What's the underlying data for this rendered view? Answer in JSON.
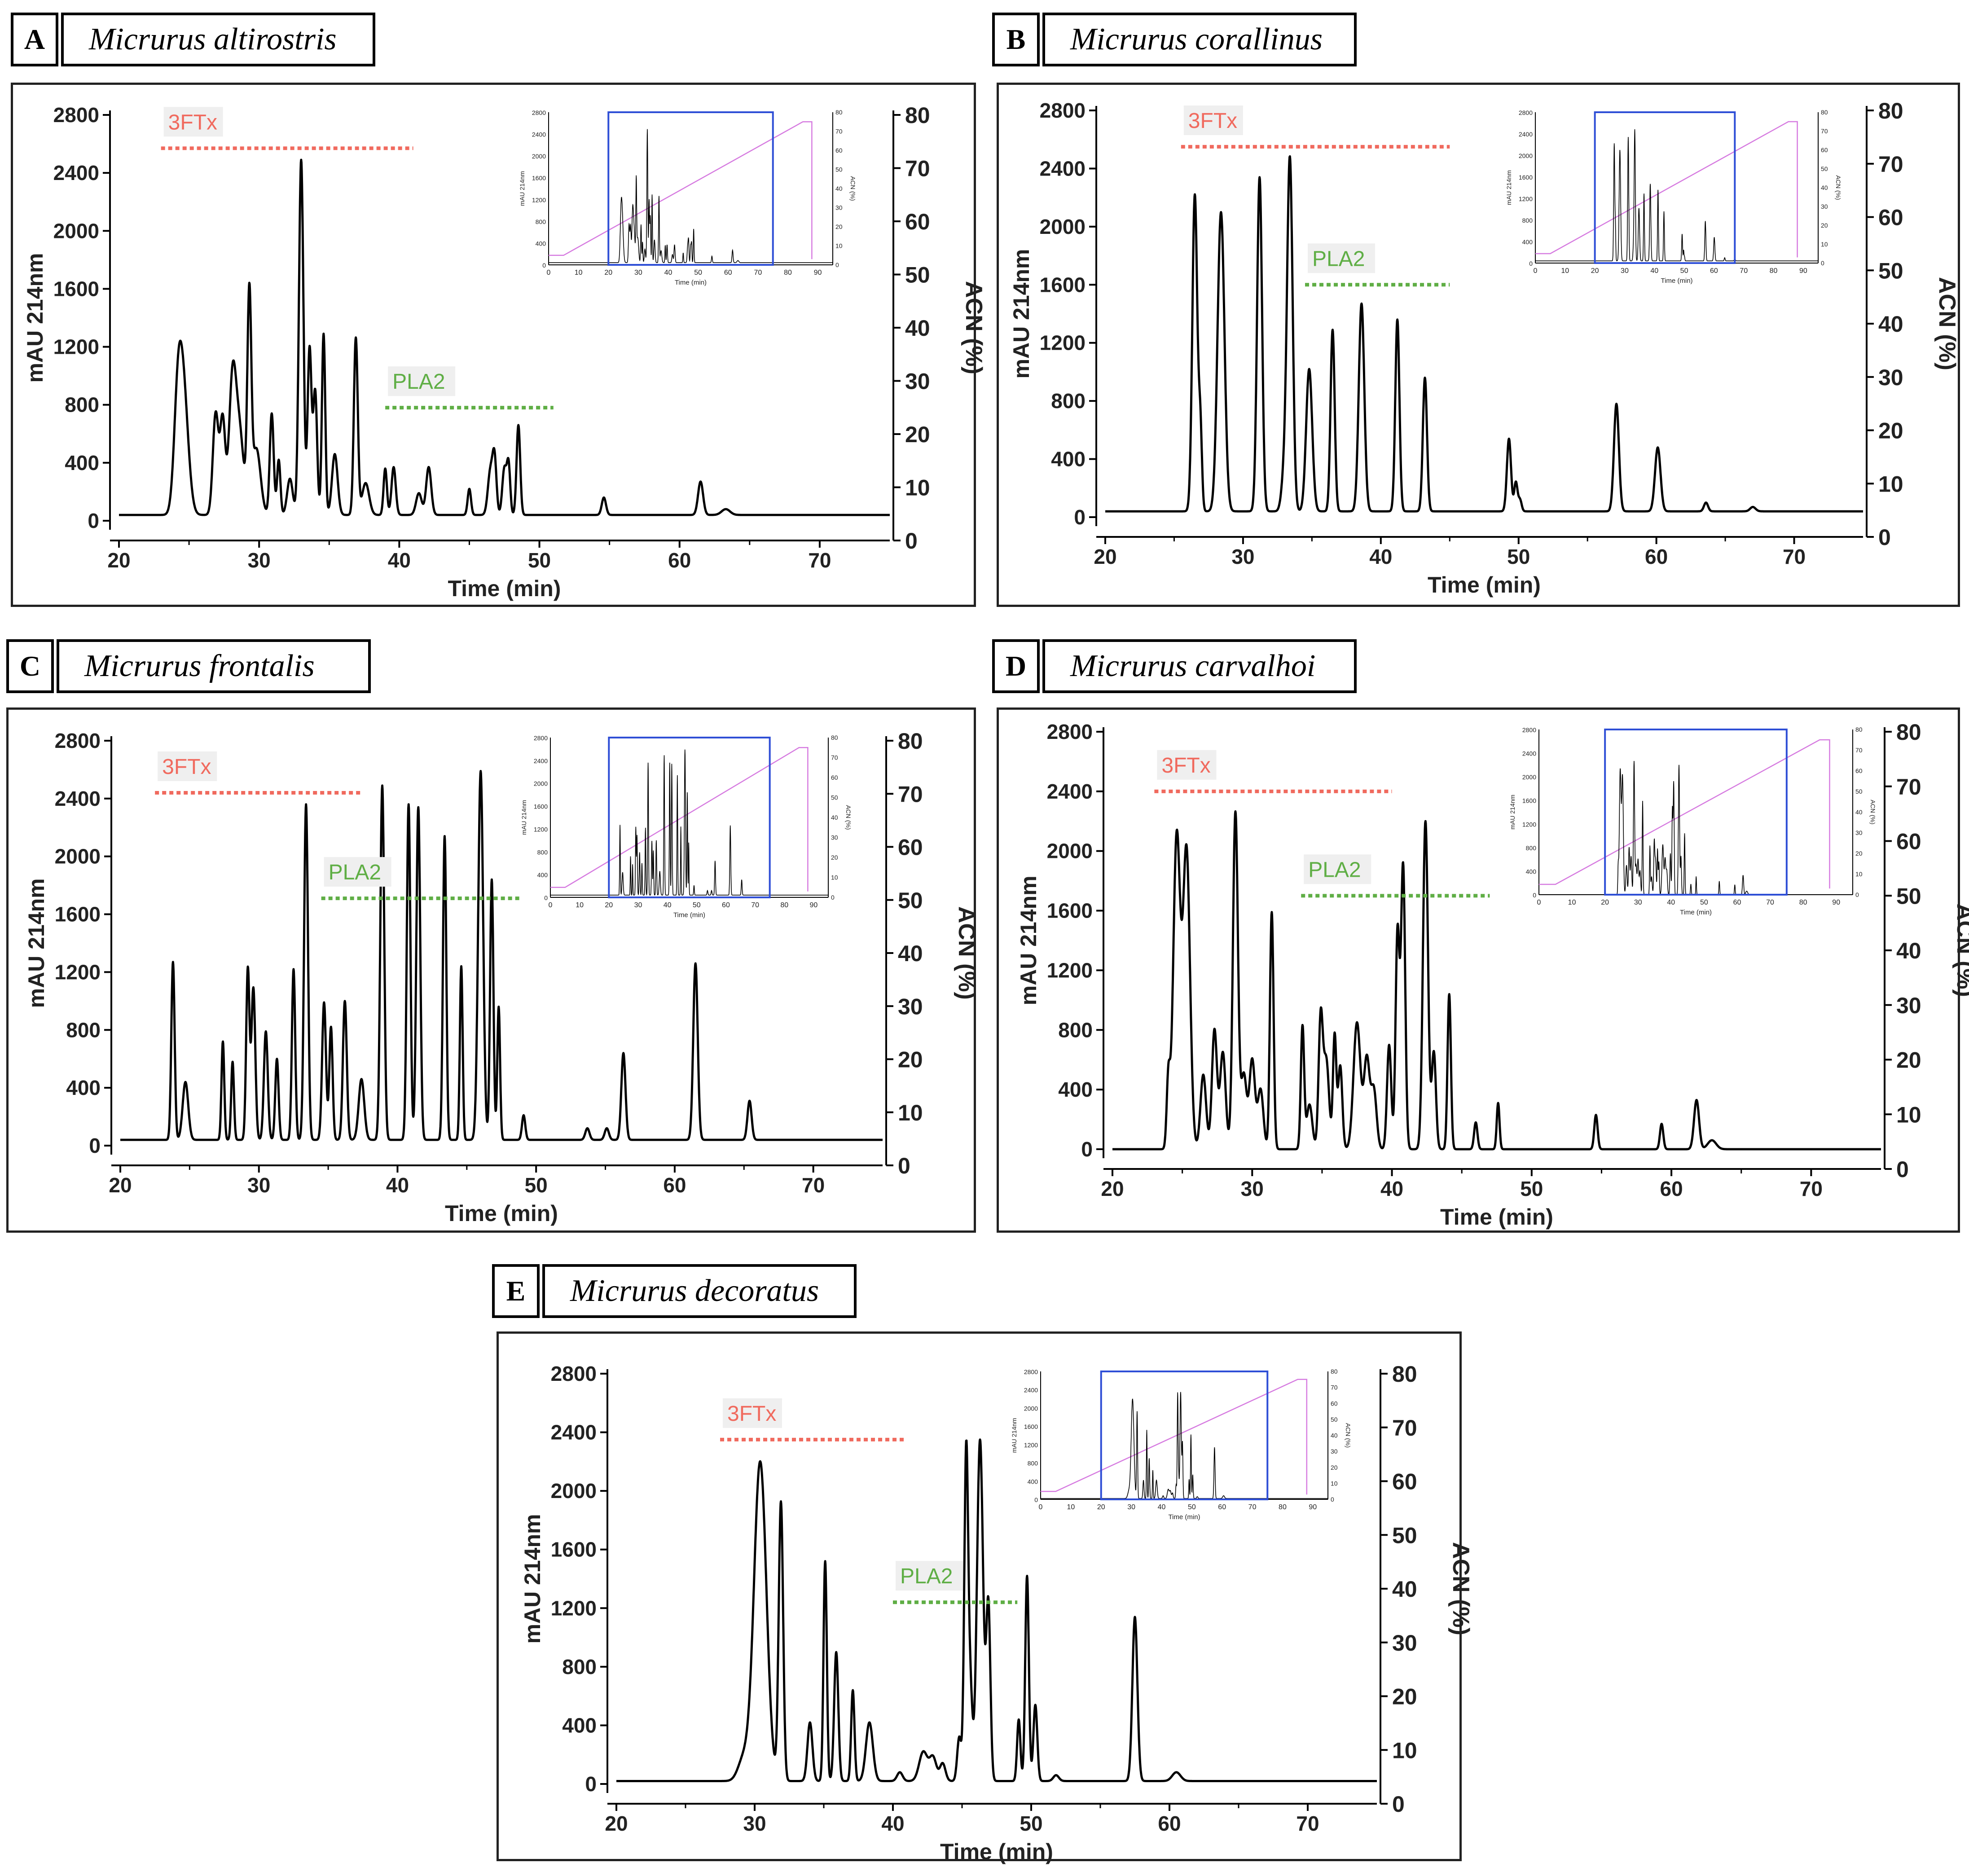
{
  "chart_data": [
    {
      "type": "line",
      "panel_letter": "A",
      "title": "Micrurus altirostris",
      "xlabel": "Time (min)",
      "ylabel": "mAU 214nm",
      "y2label": "ACN (%)",
      "xlim": [
        20,
        75
      ],
      "ylim": [
        0,
        2800
      ],
      "y2lim": [
        0,
        80
      ],
      "xticks": [
        "20",
        "30",
        "40",
        "50",
        "60",
        "70"
      ],
      "yticks": [
        "0",
        "400",
        "800",
        "1200",
        "1600",
        "2000",
        "2400",
        "2800"
      ],
      "y2ticks": [
        "0",
        "10",
        "20",
        "30",
        "40",
        "50",
        "60",
        "70",
        "80"
      ],
      "baseline": 40,
      "peaks": [
        [
          24.2,
          650,
          0.28
        ],
        [
          24.6,
          820,
          0.35
        ],
        [
          26.9,
          700,
          0.2
        ],
        [
          27.4,
          650,
          0.18
        ],
        [
          28.1,
          900,
          0.25
        ],
        [
          28.6,
          560,
          0.3
        ],
        [
          29.3,
          1450,
          0.14
        ],
        [
          29.8,
          460,
          0.3
        ],
        [
          30.9,
          700,
          0.14
        ],
        [
          31.4,
          380,
          0.12
        ],
        [
          32.2,
          250,
          0.2
        ],
        [
          33.0,
          2450,
          0.16
        ],
        [
          33.6,
          1150,
          0.14
        ],
        [
          34.0,
          850,
          0.14
        ],
        [
          34.6,
          1250,
          0.12
        ],
        [
          35.4,
          420,
          0.2
        ],
        [
          36.9,
          1220,
          0.14
        ],
        [
          37.6,
          220,
          0.25
        ],
        [
          39.0,
          320,
          0.12
        ],
        [
          39.6,
          330,
          0.15
        ],
        [
          41.4,
          150,
          0.2
        ],
        [
          42.1,
          330,
          0.18
        ],
        [
          45.0,
          180,
          0.12
        ],
        [
          46.5,
          300,
          0.18
        ],
        [
          46.8,
          370,
          0.14
        ],
        [
          47.5,
          320,
          0.15
        ],
        [
          47.8,
          340,
          0.12
        ],
        [
          48.5,
          620,
          0.13
        ],
        [
          54.6,
          120,
          0.15
        ],
        [
          61.5,
          230,
          0.18
        ],
        [
          63.3,
          40,
          0.3
        ]
      ],
      "bands": [
        {
          "label": "3FTx",
          "kind": "3ftx",
          "x_start": 23.0,
          "x_end": 41.0,
          "y": 2570
        },
        {
          "label": "PLA2",
          "kind": "pla2",
          "x_start": 39.0,
          "x_end": 51.0,
          "y": 780
        }
      ],
      "inset": {
        "xticks": [
          "0",
          "10",
          "20",
          "30",
          "40",
          "50",
          "60",
          "70",
          "80",
          "90"
        ],
        "xlabel": "Time (min)",
        "ylabel": "mAU 214nm",
        "y2label": "ACN (%)",
        "box_range": [
          20,
          75
        ],
        "gradient": [
          [
            0,
            5
          ],
          [
            5,
            5
          ],
          [
            85,
            75
          ],
          [
            88,
            75
          ],
          [
            88,
            3
          ]
        ]
      }
    },
    {
      "type": "line",
      "panel_letter": "B",
      "title": "Micrurus corallinus",
      "xlabel": "Time (min)",
      "ylabel": "mAU 214nm",
      "y2label": "ACN (%)",
      "xlim": [
        20,
        75
      ],
      "ylim": [
        0,
        2800
      ],
      "y2lim": [
        0,
        80
      ],
      "xticks": [
        "20",
        "30",
        "40",
        "50",
        "60",
        "70"
      ],
      "yticks": [
        "0",
        "400",
        "800",
        "1200",
        "1600",
        "2000",
        "2400",
        "2800"
      ],
      "y2ticks": [
        "0",
        "10",
        "20",
        "30",
        "40",
        "50",
        "60",
        "70",
        "80"
      ],
      "baseline": 40,
      "peaks": [
        [
          26.5,
          2180,
          0.18
        ],
        [
          26.9,
          550,
          0.12
        ],
        [
          28.4,
          2060,
          0.25
        ],
        [
          31.2,
          2300,
          0.18
        ],
        [
          33.0,
          250,
          0.2
        ],
        [
          33.4,
          2410,
          0.2
        ],
        [
          34.8,
          980,
          0.22
        ],
        [
          36.5,
          1250,
          0.15
        ],
        [
          38.6,
          1430,
          0.2
        ],
        [
          41.2,
          1320,
          0.15
        ],
        [
          43.2,
          920,
          0.15
        ],
        [
          49.3,
          500,
          0.15
        ],
        [
          49.8,
          200,
          0.12
        ],
        [
          50.1,
          80,
          0.12
        ],
        [
          57.1,
          740,
          0.18
        ],
        [
          60.1,
          440,
          0.2
        ],
        [
          63.6,
          60,
          0.15
        ],
        [
          67.0,
          30,
          0.2
        ]
      ],
      "bands": [
        {
          "label": "3FTx",
          "kind": "3ftx",
          "x_start": 25.5,
          "x_end": 45.0,
          "y": 2550
        },
        {
          "label": "PLA2",
          "kind": "pla2",
          "x_start": 34.5,
          "x_end": 45.0,
          "y": 1600
        }
      ],
      "inset": {
        "xticks": [
          "0",
          "10",
          "20",
          "30",
          "40",
          "50",
          "60",
          "70",
          "80",
          "90"
        ],
        "xlabel": "Time (min)",
        "ylabel": "mAU 214nm",
        "y2label": "ACN (%)",
        "box_range": [
          20,
          67
        ],
        "gradient": [
          [
            0,
            5
          ],
          [
            5,
            5
          ],
          [
            85,
            75
          ],
          [
            88,
            75
          ],
          [
            88,
            3
          ]
        ]
      }
    },
    {
      "type": "line",
      "panel_letter": "C",
      "title": "Micrurus frontalis",
      "xlabel": "Time (min)",
      "ylabel": "mAU 214nm",
      "y2label": "ACN (%)",
      "xlim": [
        20,
        75
      ],
      "ylim": [
        0,
        2800
      ],
      "y2lim": [
        0,
        80
      ],
      "xticks": [
        "20",
        "30",
        "40",
        "50",
        "60",
        "70"
      ],
      "yticks": [
        "0",
        "400",
        "800",
        "1200",
        "1600",
        "2000",
        "2400",
        "2800"
      ],
      "y2ticks": [
        "0",
        "10",
        "20",
        "30",
        "40",
        "50",
        "60",
        "70",
        "80"
      ],
      "baseline": 40,
      "peaks": [
        [
          23.8,
          1230,
          0.12
        ],
        [
          24.7,
          400,
          0.2
        ],
        [
          27.4,
          680,
          0.1
        ],
        [
          28.1,
          540,
          0.1
        ],
        [
          29.2,
          1180,
          0.12
        ],
        [
          29.6,
          1050,
          0.14
        ],
        [
          30.5,
          750,
          0.14
        ],
        [
          31.3,
          560,
          0.12
        ],
        [
          32.5,
          1180,
          0.12
        ],
        [
          33.4,
          2320,
          0.14
        ],
        [
          34.7,
          950,
          0.14
        ],
        [
          35.2,
          780,
          0.12
        ],
        [
          36.2,
          960,
          0.14
        ],
        [
          37.4,
          420,
          0.2
        ],
        [
          38.9,
          2450,
          0.14
        ],
        [
          40.8,
          2320,
          0.13
        ],
        [
          41.5,
          2300,
          0.14
        ],
        [
          43.4,
          2100,
          0.12
        ],
        [
          44.6,
          1200,
          0.1
        ],
        [
          46.0,
          2550,
          0.18
        ],
        [
          46.8,
          1800,
          0.12
        ],
        [
          47.3,
          920,
          0.1
        ],
        [
          49.1,
          170,
          0.12
        ],
        [
          53.7,
          80,
          0.15
        ],
        [
          55.1,
          80,
          0.15
        ],
        [
          56.3,
          600,
          0.15
        ],
        [
          61.5,
          1220,
          0.16
        ],
        [
          65.4,
          270,
          0.15
        ]
      ],
      "bands": [
        {
          "label": "3FTx",
          "kind": "3ftx",
          "x_start": 22.5,
          "x_end": 37.5,
          "y": 2440
        },
        {
          "label": "PLA2",
          "kind": "pla2",
          "x_start": 34.5,
          "x_end": 49.0,
          "y": 1710
        }
      ],
      "inset": {
        "xticks": [
          "0",
          "10",
          "20",
          "30",
          "40",
          "50",
          "60",
          "70",
          "80",
          "90"
        ],
        "xlabel": "Time (min)",
        "ylabel": "mAU 214nm",
        "y2label": "ACN (%)",
        "box_range": [
          20,
          75
        ],
        "gradient": [
          [
            0,
            5
          ],
          [
            5,
            5
          ],
          [
            85,
            75
          ],
          [
            88,
            75
          ],
          [
            88,
            3
          ]
        ]
      }
    },
    {
      "type": "line",
      "panel_letter": "D",
      "title": "Micrurus carvalhoi",
      "xlabel": "Time (min)",
      "ylabel": "mAU 214nm",
      "y2label": "ACN (%)",
      "xlim": [
        20,
        75
      ],
      "ylim": [
        0,
        2800
      ],
      "y2lim": [
        0,
        80
      ],
      "xticks": [
        "20",
        "30",
        "40",
        "50",
        "60",
        "70"
      ],
      "yticks": [
        "0",
        "400",
        "800",
        "1200",
        "1600",
        "2000",
        "2400",
        "2800"
      ],
      "y2ticks": [
        "0",
        "10",
        "20",
        "30",
        "40",
        "50",
        "60",
        "70",
        "80"
      ],
      "baseline": 0,
      "peaks": [
        [
          24.0,
          450,
          0.12
        ],
        [
          24.6,
          2100,
          0.25
        ],
        [
          25.3,
          2000,
          0.25
        ],
        [
          26.5,
          500,
          0.2
        ],
        [
          27.3,
          800,
          0.18
        ],
        [
          27.9,
          650,
          0.2
        ],
        [
          28.8,
          2260,
          0.18
        ],
        [
          29.4,
          500,
          0.2
        ],
        [
          30.0,
          600,
          0.2
        ],
        [
          30.6,
          400,
          0.2
        ],
        [
          31.4,
          1590,
          0.13
        ],
        [
          33.6,
          820,
          0.12
        ],
        [
          34.1,
          300,
          0.2
        ],
        [
          34.9,
          860,
          0.15
        ],
        [
          35.3,
          600,
          0.2
        ],
        [
          35.9,
          760,
          0.12
        ],
        [
          36.3,
          560,
          0.15
        ],
        [
          37.5,
          850,
          0.25
        ],
        [
          38.2,
          600,
          0.2
        ],
        [
          38.7,
          400,
          0.2
        ],
        [
          39.8,
          700,
          0.15
        ],
        [
          40.4,
          1450,
          0.14
        ],
        [
          40.8,
          1900,
          0.15
        ],
        [
          42.4,
          2200,
          0.18
        ],
        [
          43.0,
          650,
          0.15
        ],
        [
          44.1,
          1040,
          0.12
        ],
        [
          46.0,
          180,
          0.12
        ],
        [
          47.6,
          310,
          0.1
        ],
        [
          54.6,
          230,
          0.12
        ],
        [
          59.3,
          170,
          0.12
        ],
        [
          61.8,
          330,
          0.18
        ],
        [
          62.9,
          60,
          0.3
        ]
      ],
      "bands": [
        {
          "label": "3FTx",
          "kind": "3ftx",
          "x_start": 23.0,
          "x_end": 40.0,
          "y": 2400
        },
        {
          "label": "PLA2",
          "kind": "pla2",
          "x_start": 33.5,
          "x_end": 47.0,
          "y": 1700
        }
      ],
      "inset": {
        "xticks": [
          "0",
          "10",
          "20",
          "30",
          "40",
          "50",
          "60",
          "70",
          "80",
          "90"
        ],
        "xlabel": "Time (min)",
        "ylabel": "mAU 214nm",
        "y2label": "ACN (%)",
        "box_range": [
          20,
          75
        ],
        "gradient": [
          [
            0,
            5
          ],
          [
            5,
            5
          ],
          [
            85,
            75
          ],
          [
            88,
            75
          ],
          [
            88,
            3
          ]
        ]
      }
    },
    {
      "type": "line",
      "panel_letter": "E",
      "title": "Micrurus decoratus",
      "xlabel": "Time (min)",
      "ylabel": "mAU 214nm",
      "y2label": "ACN (%)",
      "xlim": [
        20,
        75
      ],
      "ylim": [
        0,
        2800
      ],
      "y2lim": [
        0,
        80
      ],
      "xticks": [
        "20",
        "30",
        "40",
        "50",
        "60",
        "70"
      ],
      "yticks": [
        "0",
        "400",
        "800",
        "1200",
        "1600",
        "2000",
        "2400",
        "2800"
      ],
      "y2ticks": [
        "0",
        "10",
        "20",
        "30",
        "40",
        "50",
        "60",
        "70",
        "80"
      ],
      "baseline": 20,
      "peaks": [
        [
          29.2,
          150,
          0.4
        ],
        [
          30.4,
          2180,
          0.45
        ],
        [
          31.9,
          1900,
          0.16
        ],
        [
          34.0,
          400,
          0.18
        ],
        [
          35.1,
          1500,
          0.12
        ],
        [
          35.9,
          880,
          0.15
        ],
        [
          37.1,
          620,
          0.12
        ],
        [
          38.3,
          400,
          0.25
        ],
        [
          40.5,
          60,
          0.2
        ],
        [
          42.2,
          200,
          0.3
        ],
        [
          42.9,
          160,
          0.25
        ],
        [
          43.6,
          120,
          0.2
        ],
        [
          44.8,
          300,
          0.15
        ],
        [
          45.3,
          2240,
          0.14
        ],
        [
          45.6,
          600,
          0.15
        ],
        [
          46.3,
          2330,
          0.22
        ],
        [
          46.9,
          1200,
          0.15
        ],
        [
          49.1,
          420,
          0.12
        ],
        [
          49.7,
          1400,
          0.13
        ],
        [
          50.3,
          520,
          0.14
        ],
        [
          51.8,
          40,
          0.2
        ],
        [
          57.5,
          1120,
          0.18
        ],
        [
          60.5,
          60,
          0.3
        ]
      ],
      "bands": [
        {
          "label": "3FTx",
          "kind": "3ftx",
          "x_start": 27.5,
          "x_end": 41.0,
          "y": 2350
        },
        {
          "label": "PLA2",
          "kind": "pla2",
          "x_start": 40.0,
          "x_end": 49.0,
          "y": 1240
        }
      ],
      "inset": {
        "xticks": [
          "0",
          "10",
          "20",
          "30",
          "40",
          "50",
          "60",
          "70",
          "80",
          "90"
        ],
        "xlabel": "Time (min)",
        "ylabel": "mAU 214nm",
        "y2label": "ACN (%)",
        "box_range": [
          20,
          75
        ],
        "gradient": [
          [
            0,
            5
          ],
          [
            5,
            5
          ],
          [
            85,
            75
          ],
          [
            88,
            75
          ],
          [
            88,
            3
          ]
        ]
      }
    }
  ],
  "colors": {
    "trace": "#000000",
    "band_3ftx": "#f06a5e",
    "band_pla2": "#5fae45",
    "inset_box": "#2f4fd6",
    "gradient": "#d67be0"
  }
}
